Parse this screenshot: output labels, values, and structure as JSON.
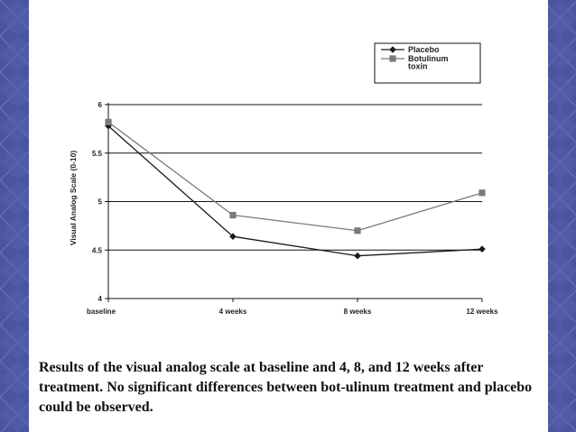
{
  "colors": {
    "background": "#4a55a0",
    "placebo": "#1a1a1a",
    "botulinum": "#7a7a7a"
  },
  "chart_data": {
    "type": "line",
    "title": "",
    "xlabel": "",
    "ylabel": "Visual Analog Scale (0-10)",
    "categories": [
      "baseline",
      "4 weeks",
      "8 weeks",
      "12 weeks"
    ],
    "ylim": [
      4,
      6
    ],
    "yticks": [
      4,
      4.5,
      5,
      5.5,
      6
    ],
    "ytick_labels": [
      "4",
      "4.5",
      "5",
      "5.5",
      "6"
    ],
    "grid": true,
    "legend_position": "top-right",
    "series": [
      {
        "name": "Placebo",
        "legend_lines": [
          "Placebo"
        ],
        "marker": "diamond",
        "color": "#1a1a1a",
        "values": [
          5.78,
          4.64,
          4.44,
          4.51
        ]
      },
      {
        "name": "Botulinum toxin",
        "legend_lines": [
          "Botulinum",
          "toxin"
        ],
        "marker": "square",
        "color": "#7a7a7a",
        "values": [
          5.82,
          4.86,
          4.7,
          5.09
        ]
      }
    ]
  },
  "caption": "Results of the visual analog scale at baseline and 4, 8, and 12 weeks after treatment. No significant differences between bot-ulinum treatment and placebo could be observed."
}
